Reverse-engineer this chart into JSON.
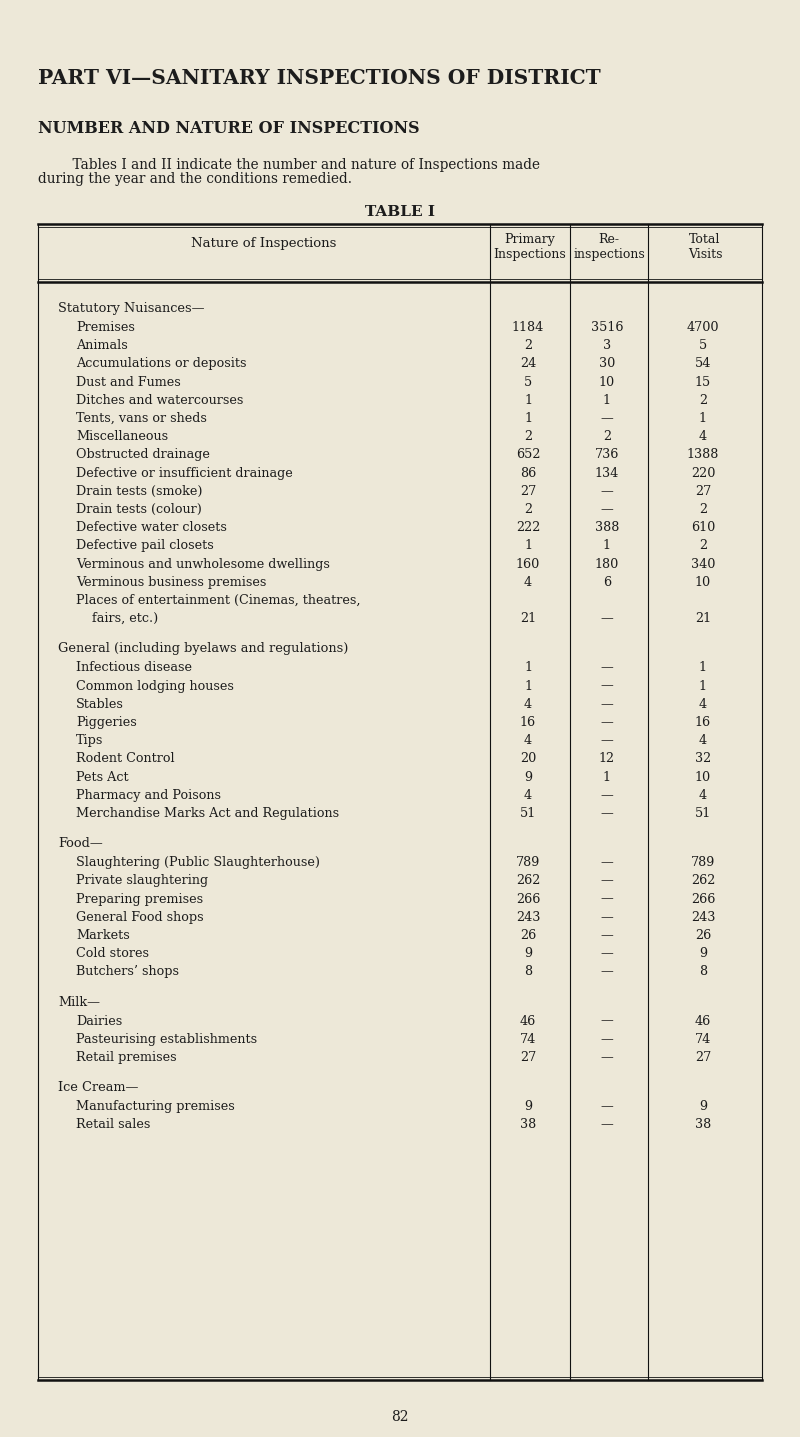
{
  "title1": "PART VI—SANITARY INSPECTIONS OF DISTRICT",
  "title2": "NUMBER AND NATURE OF INSPECTIONS",
  "intro_line1": "    Tables I and II indicate the number and nature of Inspections made",
  "intro_line2": "during the year and the conditions remedied.",
  "table_title": "TABLE I",
  "col_header1": "Nature of Inspections",
  "col_header2a": "Primary",
  "col_header2b": "Inspections",
  "col_header3a": "Re-",
  "col_header3b": "inspections",
  "col_header4a": "Total",
  "col_header4b": "Visits",
  "sections": [
    {
      "header": "Statutory Nuisances—",
      "header_style": "smallcaps",
      "rows": [
        {
          "label": "Premises",
          "dots": true,
          "c1": "1184",
          "c2": "3516",
          "c3": "4700"
        },
        {
          "label": "Animals",
          "dots": true,
          "c1": "2",
          "c2": "3",
          "c3": "5"
        },
        {
          "label": "Accumulations or deposits",
          "dots": true,
          "c1": "24",
          "c2": "30",
          "c3": "54"
        },
        {
          "label": "Dust and Fumes",
          "dots": true,
          "c1": "5",
          "c2": "10",
          "c3": "15"
        },
        {
          "label": "Ditches and watercourses",
          "dots": true,
          "c1": "1",
          "c2": "1",
          "c3": "2"
        },
        {
          "label": "Tents, vans or sheds",
          "dots": true,
          "c1": "1",
          "c2": "—",
          "c3": "1"
        },
        {
          "label": "Miscellaneous",
          "dots": true,
          "c1": "2",
          "c2": "2",
          "c3": "4"
        },
        {
          "label": "Obstructed drainage",
          "dots": true,
          "c1": "652",
          "c2": "736",
          "c3": "1388"
        },
        {
          "label": "Defective or insufficient drainage",
          "dots": true,
          "c1": "86",
          "c2": "134",
          "c3": "220"
        },
        {
          "label": "Drain tests (smoke)",
          "dots": true,
          "c1": "27",
          "c2": "—",
          "c3": "27"
        },
        {
          "label": "Drain tests (colour)",
          "dots": true,
          "c1": "2",
          "c2": "—",
          "c3": "2"
        },
        {
          "label": "Defective water closets",
          "dots": true,
          "c1": "222",
          "c2": "388",
          "c3": "610"
        },
        {
          "label": "Defective pail closets",
          "dots": true,
          "c1": "1",
          "c2": "1",
          "c3": "2"
        },
        {
          "label": "Verminous and unwholesome dwellings",
          "dots": true,
          "c1": "160",
          "c2": "180",
          "c3": "340"
        },
        {
          "label": "Verminous business premises",
          "dots": true,
          "c1": "4",
          "c2": "6",
          "c3": "10"
        },
        {
          "label": "Places of entertainment (Cinemas, theatres,",
          "dots": false,
          "c1": "",
          "c2": "",
          "c3": ""
        },
        {
          "label": "    fairs, etc.)",
          "dots": true,
          "c1": "21",
          "c2": "—",
          "c3": "21"
        }
      ]
    },
    {
      "header": "General (including byelaws and regulations)",
      "header_style": "smallcaps",
      "rows": [
        {
          "label": "Infectious disease",
          "dots": true,
          "c1": "1",
          "c2": "—",
          "c3": "1"
        },
        {
          "label": "Common lodging houses",
          "dots": true,
          "c1": "1",
          "c2": "—",
          "c3": "1"
        },
        {
          "label": "Stables",
          "dots": true,
          "c1": "4",
          "c2": "—",
          "c3": "4"
        },
        {
          "label": "Piggeries",
          "dots": true,
          "c1": "16",
          "c2": "—",
          "c3": "16"
        },
        {
          "label": "Tips",
          "dots": true,
          "c1": "4",
          "c2": "—",
          "c3": "4"
        },
        {
          "label": "Rodent Control",
          "dots": true,
          "c1": "20",
          "c2": "12",
          "c3": "32"
        },
        {
          "label": "Pets Act",
          "dots": true,
          "c1": "9",
          "c2": "1",
          "c3": "10"
        },
        {
          "label": "Pharmacy and Poisons",
          "dots": true,
          "c1": "4",
          "c2": "—",
          "c3": "4"
        },
        {
          "label": "Merchandise Marks Act and Regulations",
          "dots": true,
          "c1": "51",
          "c2": "—",
          "c3": "51"
        }
      ]
    },
    {
      "header": "Food—",
      "header_style": "smallcaps",
      "rows": [
        {
          "label": "Slaughtering (Public Slaughterhouse)",
          "dots": true,
          "c1": "789",
          "c2": "—",
          "c3": "789"
        },
        {
          "label": "Private slaughtering",
          "dots": true,
          "c1": "262",
          "c2": "—",
          "c3": "262"
        },
        {
          "label": "Preparing premises",
          "dots": true,
          "c1": "266",
          "c2": "—",
          "c3": "266"
        },
        {
          "label": "General Food shops",
          "dots": true,
          "c1": "243",
          "c2": "—",
          "c3": "243"
        },
        {
          "label": "Markets",
          "dots": true,
          "c1": "26",
          "c2": "—",
          "c3": "26"
        },
        {
          "label": "Cold stores",
          "dots": true,
          "c1": "9",
          "c2": "—",
          "c3": "9"
        },
        {
          "label": "Butchers’ shops",
          "dots": true,
          "c1": "8",
          "c2": "—",
          "c3": "8"
        }
      ]
    },
    {
      "header": "Milk—",
      "header_style": "smallcaps",
      "rows": [
        {
          "label": "Dairies",
          "dots": true,
          "c1": "46",
          "c2": "—",
          "c3": "46"
        },
        {
          "label": "Pasteurising establishments",
          "dots": true,
          "c1": "74",
          "c2": "—",
          "c3": "74"
        },
        {
          "label": "Retail premises",
          "dots": true,
          "c1": "27",
          "c2": "—",
          "c3": "27"
        }
      ]
    },
    {
      "header": "Ice Cream—",
      "header_style": "smallcaps",
      "rows": [
        {
          "label": "Manufacturing premises",
          "dots": true,
          "c1": "9",
          "c2": "—",
          "c3": "9"
        },
        {
          "label": "Retail sales",
          "dots": true,
          "c1": "38",
          "c2": "—",
          "c3": "38"
        }
      ]
    }
  ],
  "bg_color": "#ede8d8",
  "text_color": "#1c1c1c",
  "line_color": "#111111",
  "page_number": "82"
}
